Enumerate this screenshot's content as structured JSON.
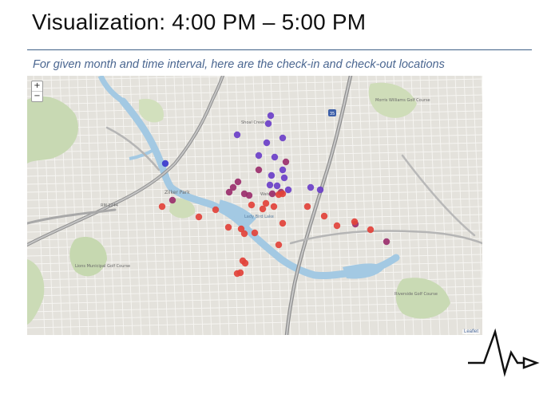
{
  "slide": {
    "title": "Visualization: 4:00 PM – 5:00 PM",
    "subtitle": "For given month and time interval, here are the check-in and check-out locations"
  },
  "map": {
    "zoom_in_label": "+",
    "zoom_out_label": "−",
    "attribution": "Leaflet",
    "labels": {
      "zilker_park": "Zilker Park",
      "rm_2244": "RM 2244",
      "shoal_creek": "Shoal Creek",
      "lady_bird_lake": "Lady Bird Lake",
      "i35_shield": "35",
      "riverside": "Riverside Golf Course",
      "morris_williams": "Morris Williams Golf Course",
      "lions": "Lions Municipal Golf Course",
      "waterloo": "Waterloo"
    },
    "colors": {
      "checkin": "#e2423a",
      "midpoint": "#9b2f6c",
      "checkout": "#6b3fc8",
      "far": "#3a3acd",
      "water": "#9fc7e4",
      "park": "#c6d8b0",
      "road": "#ffffff",
      "highway": "#9d9d9d"
    },
    "checkin_checkout_points": [
      {
        "kind": "checkout"
      },
      {
        "kind": "checkout"
      },
      {
        "kind": "checkout"
      },
      {
        "kind": "checkout"
      },
      {
        "kind": "checkout"
      },
      {
        "kind": "checkout"
      },
      {
        "kind": "checkout"
      },
      {
        "kind": "checkout"
      },
      {
        "kind": "checkout"
      },
      {
        "kind": "checkout"
      },
      {
        "kind": "checkout"
      },
      {
        "kind": "checkout"
      },
      {
        "kind": "checkout"
      },
      {
        "kind": "checkout"
      },
      {
        "kind": "checkout"
      },
      {
        "kind": "far"
      },
      {
        "kind": "midpoint"
      },
      {
        "kind": "midpoint"
      },
      {
        "kind": "midpoint"
      },
      {
        "kind": "midpoint"
      },
      {
        "kind": "midpoint"
      },
      {
        "kind": "midpoint"
      },
      {
        "kind": "midpoint"
      },
      {
        "kind": "midpoint"
      },
      {
        "kind": "midpoint"
      },
      {
        "kind": "midpoint"
      },
      {
        "kind": "midpoint"
      },
      {
        "kind": "midpoint"
      },
      {
        "kind": "checkin"
      },
      {
        "kind": "checkin"
      },
      {
        "kind": "checkin"
      },
      {
        "kind": "checkin"
      },
      {
        "kind": "checkin"
      },
      {
        "kind": "checkin"
      },
      {
        "kind": "checkin"
      },
      {
        "kind": "checkin"
      },
      {
        "kind": "checkin"
      },
      {
        "kind": "checkin"
      },
      {
        "kind": "checkin"
      },
      {
        "kind": "checkin"
      },
      {
        "kind": "checkin"
      },
      {
        "kind": "checkin"
      },
      {
        "kind": "checkin"
      },
      {
        "kind": "checkin"
      },
      {
        "kind": "checkin"
      },
      {
        "kind": "checkin"
      },
      {
        "kind": "checkin"
      },
      {
        "kind": "checkin"
      },
      {
        "kind": "checkin"
      },
      {
        "kind": "checkin"
      },
      {
        "kind": "checkin"
      },
      {
        "kind": "checkin"
      }
    ]
  },
  "logo": {
    "icon": "pulse-arrow-logo"
  }
}
